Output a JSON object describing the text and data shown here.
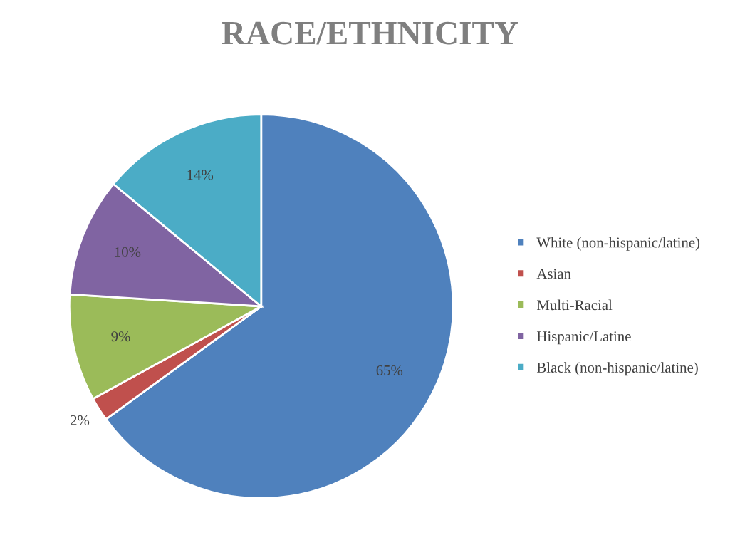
{
  "chart_data": {
    "type": "pie",
    "title": "RACE/ETHNICITY",
    "categories": [
      "White (non-hispanic/latine)",
      "Asian",
      "Multi-Racial",
      "Hispanic/Latine",
      "Black (non-hispanic/latine)"
    ],
    "values": [
      65,
      2,
      9,
      10,
      14
    ],
    "value_labels": [
      "65%",
      "2%",
      "9%",
      "10%",
      "14%"
    ],
    "colors": [
      "#4f81bd",
      "#c0504d",
      "#9bbb59",
      "#8064a2",
      "#4bacc6"
    ],
    "legend": "right"
  }
}
